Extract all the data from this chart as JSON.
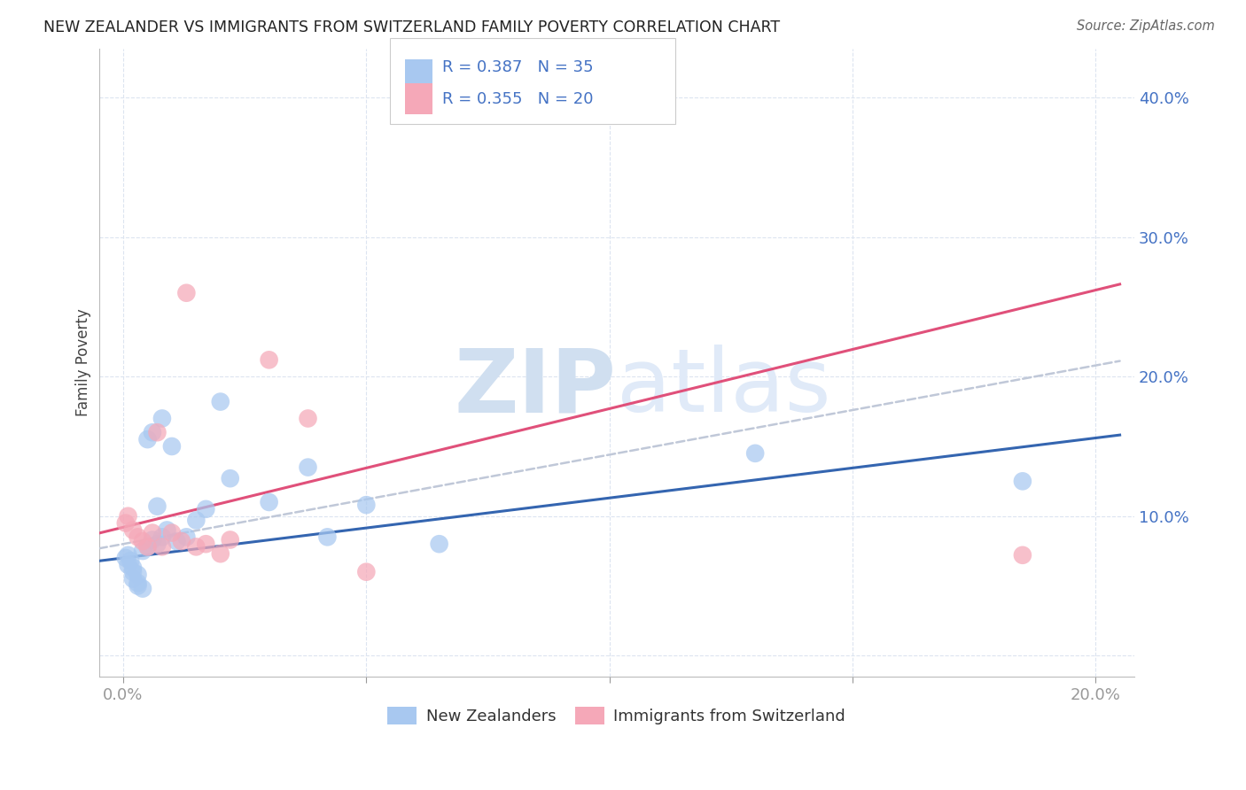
{
  "title": "NEW ZEALANDER VS IMMIGRANTS FROM SWITZERLAND FAMILY POVERTY CORRELATION CHART",
  "source": "Source: ZipAtlas.com",
  "ylabel": "Family Poverty",
  "xlim": [
    -0.005,
    0.208
  ],
  "ylim": [
    -0.015,
    0.435
  ],
  "x_ticks": [
    0.0,
    0.05,
    0.1,
    0.15,
    0.2
  ],
  "x_tick_labels": [
    "0.0%",
    "",
    "",
    "",
    "20.0%"
  ],
  "y_ticks": [
    0.0,
    0.1,
    0.2,
    0.3,
    0.4
  ],
  "y_tick_labels": [
    "",
    "10.0%",
    "20.0%",
    "30.0%",
    "40.0%"
  ],
  "nz_color": "#a8c8f0",
  "nz_line_color": "#3465b0",
  "sw_color": "#f5a8b8",
  "sw_line_color": "#e0507a",
  "trend_line_color": "#c0c8d8",
  "tick_label_color": "#4472c4",
  "legend_r_nz": "R = 0.387",
  "legend_n_nz": "N = 35",
  "legend_r_sw": "R = 0.355",
  "legend_n_sw": "N = 20",
  "legend_label_nz": "New Zealanders",
  "legend_label_sw": "Immigrants from Switzerland",
  "nz_x": [
    0.0005,
    0.001,
    0.001,
    0.0015,
    0.002,
    0.002,
    0.002,
    0.003,
    0.003,
    0.003,
    0.004,
    0.004,
    0.005,
    0.005,
    0.006,
    0.006,
    0.007,
    0.007,
    0.008,
    0.008,
    0.009,
    0.01,
    0.011,
    0.013,
    0.015,
    0.017,
    0.02,
    0.022,
    0.03,
    0.038,
    0.042,
    0.05,
    0.065,
    0.13,
    0.185
  ],
  "nz_y": [
    0.07,
    0.072,
    0.065,
    0.068,
    0.063,
    0.06,
    0.055,
    0.058,
    0.052,
    0.05,
    0.048,
    0.075,
    0.078,
    0.155,
    0.16,
    0.083,
    0.08,
    0.107,
    0.17,
    0.085,
    0.09,
    0.15,
    0.082,
    0.085,
    0.097,
    0.105,
    0.182,
    0.127,
    0.11,
    0.135,
    0.085,
    0.108,
    0.08,
    0.145,
    0.125
  ],
  "sw_x": [
    0.0005,
    0.001,
    0.002,
    0.003,
    0.004,
    0.005,
    0.006,
    0.007,
    0.008,
    0.01,
    0.012,
    0.013,
    0.015,
    0.017,
    0.02,
    0.022,
    0.03,
    0.038,
    0.05,
    0.185
  ],
  "sw_y": [
    0.095,
    0.1,
    0.09,
    0.085,
    0.082,
    0.078,
    0.088,
    0.16,
    0.078,
    0.088,
    0.082,
    0.26,
    0.078,
    0.08,
    0.073,
    0.083,
    0.212,
    0.17,
    0.06,
    0.072
  ],
  "background_color": "#ffffff",
  "grid_color": "#dce4f0",
  "watermark_color": "#dce8f8"
}
